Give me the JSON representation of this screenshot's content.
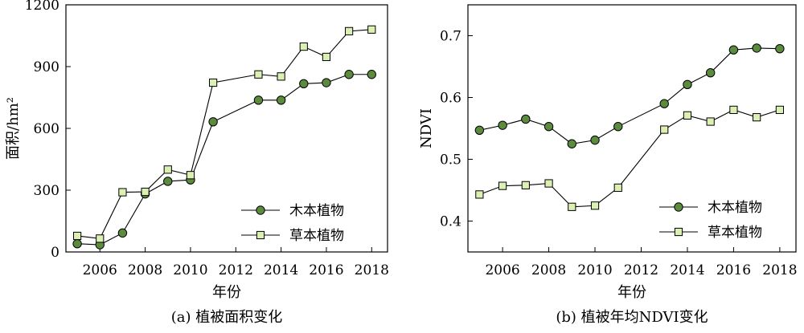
{
  "chart_data": [
    {
      "type": "line",
      "caption": "(a) 植被面积变化",
      "xlabel": "年份",
      "ylabel": "面积/hm²",
      "xlim": [
        2004.5,
        2018.7
      ],
      "ylim": [
        0,
        1200
      ],
      "xticks": [
        2006,
        2008,
        2010,
        2012,
        2014,
        2016,
        2018
      ],
      "yticks": [
        0,
        300,
        600,
        900,
        1200
      ],
      "grid": false,
      "legend_position": "lower-right",
      "series": [
        {
          "name": "木本植物",
          "marker": "circle",
          "color": "#5b8c3e",
          "x": [
            2005,
            2006,
            2007,
            2008,
            2009,
            2010,
            2011,
            2013,
            2014,
            2015,
            2016,
            2017,
            2018
          ],
          "y": [
            40,
            35,
            92,
            282,
            343,
            350,
            632,
            737,
            737,
            817,
            822,
            862,
            862
          ]
        },
        {
          "name": "草本植物",
          "marker": "square",
          "color": "#ddf0b4",
          "x": [
            2005,
            2006,
            2007,
            2008,
            2009,
            2010,
            2011,
            2013,
            2014,
            2015,
            2016,
            2017,
            2018
          ],
          "y": [
            78,
            65,
            290,
            292,
            400,
            373,
            822,
            862,
            852,
            997,
            947,
            1072,
            1080
          ]
        }
      ]
    },
    {
      "type": "line",
      "caption": "(b) 植被年均NDVI变化",
      "xlabel": "年份",
      "ylabel": "NDVI",
      "xlim": [
        2004.5,
        2018.7
      ],
      "ylim": [
        0.35,
        0.75
      ],
      "xticks": [
        2006,
        2008,
        2010,
        2012,
        2014,
        2016,
        2018
      ],
      "yticks": [
        0.4,
        0.5,
        0.6,
        0.7
      ],
      "grid": false,
      "legend_position": "lower-right",
      "series": [
        {
          "name": "木本植物",
          "marker": "circle",
          "color": "#5b8c3e",
          "x": [
            2005,
            2006,
            2007,
            2008,
            2009,
            2010,
            2011,
            2013,
            2014,
            2015,
            2016,
            2017,
            2018
          ],
          "y": [
            0.547,
            0.555,
            0.565,
            0.553,
            0.525,
            0.531,
            0.553,
            0.59,
            0.621,
            0.64,
            0.677,
            0.68,
            0.679
          ]
        },
        {
          "name": "草本植物",
          "marker": "square",
          "color": "#ddf0b4",
          "x": [
            2005,
            2006,
            2007,
            2008,
            2009,
            2010,
            2011,
            2013,
            2014,
            2015,
            2016,
            2017,
            2018
          ],
          "y": [
            0.443,
            0.457,
            0.458,
            0.461,
            0.423,
            0.425,
            0.454,
            0.548,
            0.571,
            0.561,
            0.58,
            0.568,
            0.58
          ]
        }
      ]
    }
  ]
}
